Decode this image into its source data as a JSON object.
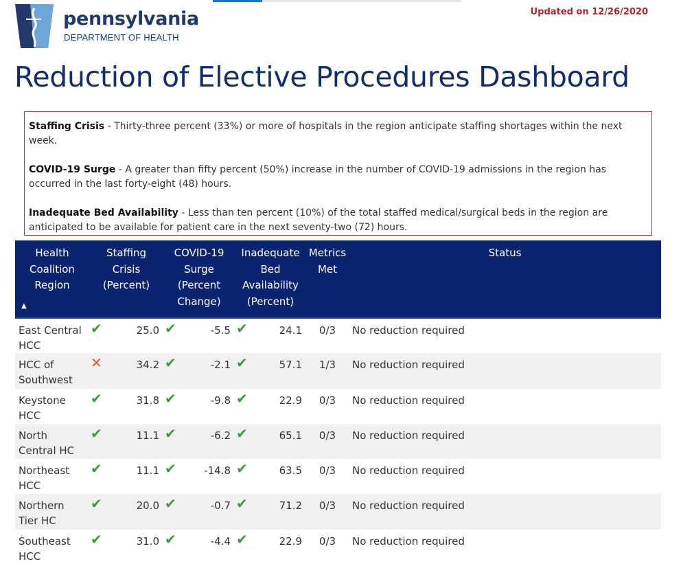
{
  "header": {
    "brand_name": "pennsylvania",
    "brand_sub": "DEPARTMENT OF HEALTH",
    "updated": "Updated on 12/26/2020"
  },
  "title": "Reduction of Elective Procedures Dashboard",
  "definitions": [
    {
      "term": "Staffing Crisis",
      "text": " - Thirty-three percent (33%) or more of hospitals in the region anticipate staffing shortages within the next week."
    },
    {
      "term": "COVID-19 Surge",
      "text": " - A greater than fifty percent (50%) increase in the number of COVID-19 admissions in the region has occurred in the last forty-eight (48) hours."
    },
    {
      "term": "Inadequate Bed Availability",
      "text": " - Less than ten percent (10%) of the total staffed medical/surgical beds in the region are anticipated to be available for patient care in the next seventy-two (72) hours."
    }
  ],
  "table": {
    "headers": {
      "region": "Health Coalition Region",
      "staffing": "Staffing Crisis (Percent)",
      "surge": "COVID-19 Surge (Percent Change)",
      "beds": "Inadequate Bed Availability (Percent)",
      "met": "Metrics Met",
      "status": "Status"
    },
    "rows": [
      {
        "region": "East Central HCC",
        "staffing_icon": "check-icon",
        "staffing": "25.0",
        "surge_icon": "check-icon",
        "surge": "-5.5",
        "beds_icon": "check-icon",
        "beds": "24.1",
        "met": "0/3",
        "status": "No reduction required"
      },
      {
        "region": "HCC of Southwest",
        "staffing_icon": "x-icon",
        "staffing": "34.2",
        "surge_icon": "check-icon",
        "surge": "-2.1",
        "beds_icon": "check-icon",
        "beds": "57.1",
        "met": "1/3",
        "status": "No reduction required"
      },
      {
        "region": "Keystone HCC",
        "staffing_icon": "check-icon",
        "staffing": "31.8",
        "surge_icon": "check-icon",
        "surge": "-9.8",
        "beds_icon": "check-icon",
        "beds": "22.9",
        "met": "0/3",
        "status": "No reduction required"
      },
      {
        "region": "North Central HC",
        "staffing_icon": "check-icon",
        "staffing": "11.1",
        "surge_icon": "check-icon",
        "surge": "-6.2",
        "beds_icon": "check-icon",
        "beds": "65.1",
        "met": "0/3",
        "status": "No reduction required"
      },
      {
        "region": "Northeast HCC",
        "staffing_icon": "check-icon",
        "staffing": "11.1",
        "surge_icon": "check-icon",
        "surge": "-14.8",
        "beds_icon": "check-icon",
        "beds": "63.5",
        "met": "0/3",
        "status": "No reduction required"
      },
      {
        "region": "Northern Tier HC",
        "staffing_icon": "check-icon",
        "staffing": "20.0",
        "surge_icon": "check-icon",
        "surge": "-0.7",
        "beds_icon": "check-icon",
        "beds": "71.2",
        "met": "0/3",
        "status": "No reduction required"
      },
      {
        "region": "Southeast HCC",
        "staffing_icon": "check-icon",
        "staffing": "31.0",
        "surge_icon": "check-icon",
        "surge": "-4.4",
        "beds_icon": "check-icon",
        "beds": "22.9",
        "met": "0/3",
        "status": "No reduction required"
      }
    ]
  },
  "colors": {
    "brand_navy": "#1f3a6e",
    "header_bg": "#0b2470",
    "updated_red": "#b0242b",
    "check_green": "#3c9a3c",
    "x_red": "#e0553a",
    "border_red": "#a33a3a"
  }
}
